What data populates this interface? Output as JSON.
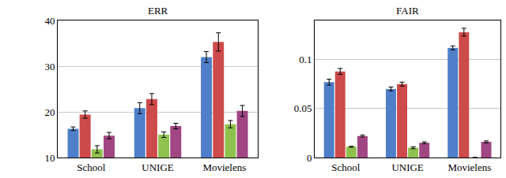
{
  "chart_data": [
    {
      "type": "bar",
      "title": "ERR",
      "categories": [
        "School",
        "UNIGE",
        "Movielens"
      ],
      "series": [
        {
          "color": "#4f7fc9",
          "values": [
            16.3,
            20.8,
            32.0
          ],
          "errors": [
            0.4,
            1.2,
            1.2
          ]
        },
        {
          "color": "#cd4b4b",
          "values": [
            19.4,
            22.8,
            35.3
          ],
          "errors": [
            0.8,
            1.2,
            2.0
          ]
        },
        {
          "color": "#8fc14f",
          "values": [
            11.8,
            15.0,
            17.3
          ],
          "errors": [
            0.8,
            0.6,
            0.8
          ]
        },
        {
          "color": "#a04682",
          "values": [
            14.8,
            16.9,
            20.2
          ],
          "errors": [
            0.7,
            0.6,
            1.2
          ]
        }
      ],
      "ylim": [
        10,
        40
      ],
      "yticks": [
        10,
        20,
        30,
        40
      ],
      "grid": true
    },
    {
      "type": "bar",
      "title": "FAIR",
      "categories": [
        "School",
        "UNIGE",
        "Movielens"
      ],
      "series": [
        {
          "color": "#4f7fc9",
          "values": [
            0.077,
            0.07,
            0.112
          ],
          "errors": [
            0.003,
            0.002,
            0.002
          ]
        },
        {
          "color": "#cd4b4b",
          "values": [
            0.088,
            0.075,
            0.128
          ],
          "errors": [
            0.003,
            0.002,
            0.004
          ]
        },
        {
          "color": "#8fc14f",
          "values": [
            0.011,
            0.01,
            0.0
          ],
          "errors": [
            0.0005,
            0.001,
            0.0
          ]
        },
        {
          "color": "#a04682",
          "values": [
            0.022,
            0.015,
            0.016
          ],
          "errors": [
            0.001,
            0.001,
            0.001
          ]
        }
      ],
      "ylim": [
        0,
        0.14
      ],
      "yticks": [
        0,
        0.05,
        0.1
      ],
      "grid": true
    }
  ]
}
